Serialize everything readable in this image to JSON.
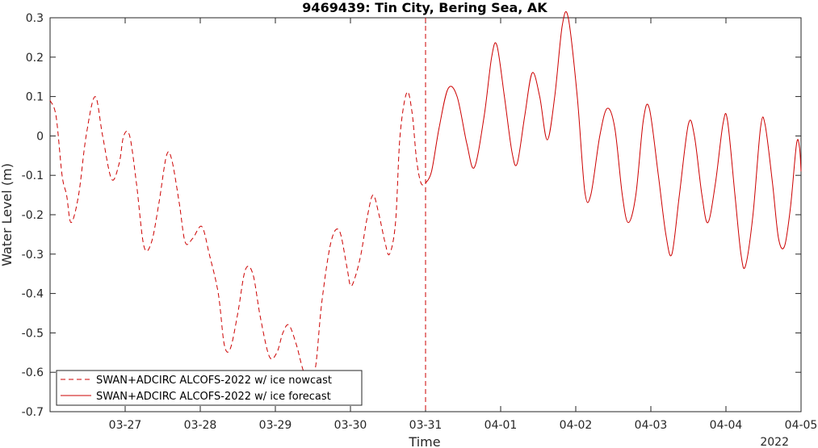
{
  "chart_data": {
    "type": "line",
    "title": "9469439: Tin City, Bering Sea, AK",
    "xlabel": "Time",
    "ylabel": "Water Level (m)",
    "year_label": "2022",
    "x_tick_labels": [
      "03-27",
      "03-28",
      "03-29",
      "03-30",
      "03-31",
      "04-01",
      "04-02",
      "04-03",
      "04-04",
      "04-05"
    ],
    "x_tick_days": [
      1,
      2,
      3,
      4,
      5,
      6,
      7,
      8,
      9,
      10
    ],
    "y_ticks": [
      0.3,
      0.2,
      0.1,
      0,
      -0.1,
      -0.2,
      -0.3,
      -0.4,
      -0.5,
      -0.6,
      -0.7
    ],
    "y_tick_labels": [
      "0.3",
      "0.2",
      "0.1",
      "0",
      "-0.1",
      "-0.2",
      "-0.3",
      "-0.4",
      "-0.5",
      "-0.6",
      "-0.7"
    ],
    "xlim_days": [
      0,
      10
    ],
    "ylim": [
      -0.7,
      0.3
    ],
    "grid": false,
    "legend_position": "bottom-left",
    "nowcast_forecast_divider_day": 5,
    "series_color": "#cc0000",
    "series": [
      {
        "name": "SWAN+ADCIRC ALCOFS-2022 w/ ice nowcast",
        "style": "dashed",
        "points": [
          [
            0.0,
            0.09
          ],
          [
            0.08,
            0.05
          ],
          [
            0.16,
            -0.1
          ],
          [
            0.22,
            -0.15
          ],
          [
            0.28,
            -0.22
          ],
          [
            0.38,
            -0.15
          ],
          [
            0.48,
            0.0
          ],
          [
            0.6,
            0.1
          ],
          [
            0.7,
            0.0
          ],
          [
            0.82,
            -0.11
          ],
          [
            0.92,
            -0.07
          ],
          [
            0.98,
            0.0
          ],
          [
            1.06,
            0.0
          ],
          [
            1.15,
            -0.12
          ],
          [
            1.25,
            -0.28
          ],
          [
            1.35,
            -0.27
          ],
          [
            1.45,
            -0.17
          ],
          [
            1.55,
            -0.05
          ],
          [
            1.62,
            -0.06
          ],
          [
            1.72,
            -0.17
          ],
          [
            1.8,
            -0.27
          ],
          [
            1.9,
            -0.26
          ],
          [
            2.02,
            -0.23
          ],
          [
            2.12,
            -0.3
          ],
          [
            2.24,
            -0.4
          ],
          [
            2.32,
            -0.53
          ],
          [
            2.4,
            -0.54
          ],
          [
            2.5,
            -0.45
          ],
          [
            2.6,
            -0.34
          ],
          [
            2.7,
            -0.35
          ],
          [
            2.8,
            -0.46
          ],
          [
            2.92,
            -0.56
          ],
          [
            3.02,
            -0.55
          ],
          [
            3.1,
            -0.5
          ],
          [
            3.18,
            -0.48
          ],
          [
            3.28,
            -0.53
          ],
          [
            3.38,
            -0.6
          ],
          [
            3.48,
            -0.62
          ],
          [
            3.54,
            -0.58
          ],
          [
            3.62,
            -0.42
          ],
          [
            3.74,
            -0.27
          ],
          [
            3.85,
            -0.24
          ],
          [
            3.95,
            -0.33
          ],
          [
            4.0,
            -0.38
          ],
          [
            4.06,
            -0.36
          ],
          [
            4.14,
            -0.3
          ],
          [
            4.22,
            -0.21
          ],
          [
            4.3,
            -0.15
          ],
          [
            4.38,
            -0.2
          ],
          [
            4.46,
            -0.27
          ],
          [
            4.52,
            -0.3
          ],
          [
            4.6,
            -0.22
          ],
          [
            4.66,
            0.0
          ],
          [
            4.75,
            0.11
          ],
          [
            4.82,
            0.06
          ],
          [
            4.88,
            -0.06
          ],
          [
            4.94,
            -0.12
          ],
          [
            5.0,
            -0.12
          ]
        ]
      },
      {
        "name": "SWAN+ADCIRC ALCOFS-2022 w/ ice forecast",
        "style": "solid",
        "points": [
          [
            5.0,
            -0.12
          ],
          [
            5.08,
            -0.09
          ],
          [
            5.18,
            0.02
          ],
          [
            5.3,
            0.12
          ],
          [
            5.42,
            0.1
          ],
          [
            5.55,
            -0.02
          ],
          [
            5.65,
            -0.08
          ],
          [
            5.78,
            0.05
          ],
          [
            5.88,
            0.2
          ],
          [
            5.95,
            0.23
          ],
          [
            6.05,
            0.1
          ],
          [
            6.15,
            -0.04
          ],
          [
            6.22,
            -0.07
          ],
          [
            6.32,
            0.05
          ],
          [
            6.42,
            0.16
          ],
          [
            6.52,
            0.1
          ],
          [
            6.62,
            -0.01
          ],
          [
            6.72,
            0.1
          ],
          [
            6.82,
            0.28
          ],
          [
            6.9,
            0.3
          ],
          [
            7.02,
            0.1
          ],
          [
            7.12,
            -0.14
          ],
          [
            7.2,
            -0.15
          ],
          [
            7.32,
            0.0
          ],
          [
            7.42,
            0.07
          ],
          [
            7.52,
            0.02
          ],
          [
            7.62,
            -0.15
          ],
          [
            7.7,
            -0.22
          ],
          [
            7.8,
            -0.15
          ],
          [
            7.9,
            0.04
          ],
          [
            7.98,
            0.07
          ],
          [
            8.1,
            -0.1
          ],
          [
            8.2,
            -0.25
          ],
          [
            8.28,
            -0.3
          ],
          [
            8.38,
            -0.15
          ],
          [
            8.5,
            0.03
          ],
          [
            8.58,
            0.0
          ],
          [
            8.68,
            -0.15
          ],
          [
            8.76,
            -0.22
          ],
          [
            8.86,
            -0.12
          ],
          [
            8.96,
            0.03
          ],
          [
            9.02,
            0.04
          ],
          [
            9.12,
            -0.15
          ],
          [
            9.2,
            -0.3
          ],
          [
            9.26,
            -0.33
          ],
          [
            9.36,
            -0.2
          ],
          [
            9.46,
            0.02
          ],
          [
            9.52,
            0.03
          ],
          [
            9.62,
            -0.12
          ],
          [
            9.7,
            -0.26
          ],
          [
            9.78,
            -0.28
          ],
          [
            9.86,
            -0.18
          ],
          [
            9.94,
            -0.02
          ],
          [
            9.98,
            -0.03
          ],
          [
            10.0,
            -0.09
          ]
        ]
      }
    ]
  }
}
